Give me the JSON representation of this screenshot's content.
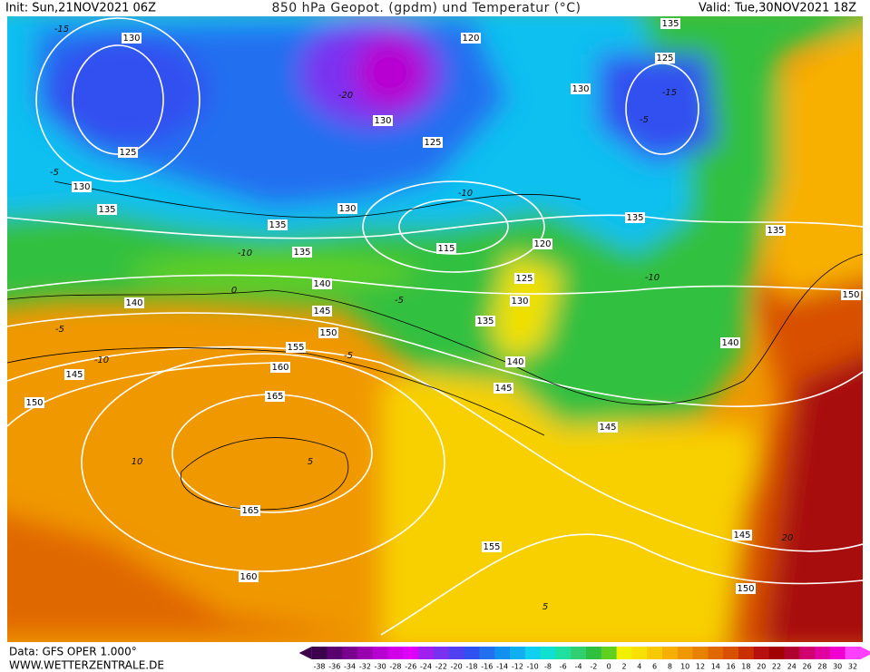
{
  "header": {
    "init": "Init: Sun,21NOV2021 06Z",
    "title": "850 hPa Geopot. (gpdm) und Temperatur (°C)",
    "valid": "Valid: Tue,30NOV2021 18Z"
  },
  "map": {
    "geopotential_labels": [
      130,
      125,
      130,
      135,
      135,
      130,
      130,
      125,
      120,
      135,
      125,
      130,
      135,
      135,
      115,
      120,
      125,
      130,
      135,
      135,
      140,
      140,
      145,
      150,
      155,
      160,
      165,
      165,
      160,
      155,
      145,
      150,
      140,
      145,
      145,
      140,
      150,
      145,
      150
    ],
    "temperature_labels": [
      -15,
      -20,
      -15,
      -5,
      -5,
      -10,
      -10,
      -10,
      0,
      -5,
      -5,
      -10,
      -5,
      10,
      5,
      5,
      20
    ]
  },
  "footer": {
    "data": "Data: GFS OPER 1.000°",
    "site": "WWW.WETTERZENTRALE.DE"
  },
  "colorbar": {
    "labels": [
      -38,
      -36,
      -34,
      -32,
      -30,
      -28,
      -26,
      -24,
      -22,
      -20,
      -18,
      -16,
      -14,
      -12,
      -10,
      -8,
      -6,
      -4,
      -2,
      0,
      2,
      4,
      6,
      8,
      10,
      12,
      14,
      16,
      18,
      20,
      22,
      24,
      26,
      28,
      30,
      32
    ],
    "colors": [
      "#3c004c",
      "#5a0070",
      "#7a0090",
      "#9a00b0",
      "#b800d0",
      "#d000e8",
      "#e000f8",
      "#a020f0",
      "#7a30f0",
      "#5040f0",
      "#3050f0",
      "#2070f0",
      "#1090f0",
      "#10b0f0",
      "#10d0f0",
      "#10e0d0",
      "#20e0a0",
      "#30d070",
      "#30c040",
      "#60d020",
      "#f0f000",
      "#f8e000",
      "#f8c800",
      "#f8b000",
      "#f09800",
      "#e88000",
      "#e06800",
      "#d85000",
      "#c83000",
      "#b81010",
      "#a00000",
      "#b00030",
      "#d00070",
      "#e000a0",
      "#f000d0",
      "#ff40ff"
    ]
  }
}
